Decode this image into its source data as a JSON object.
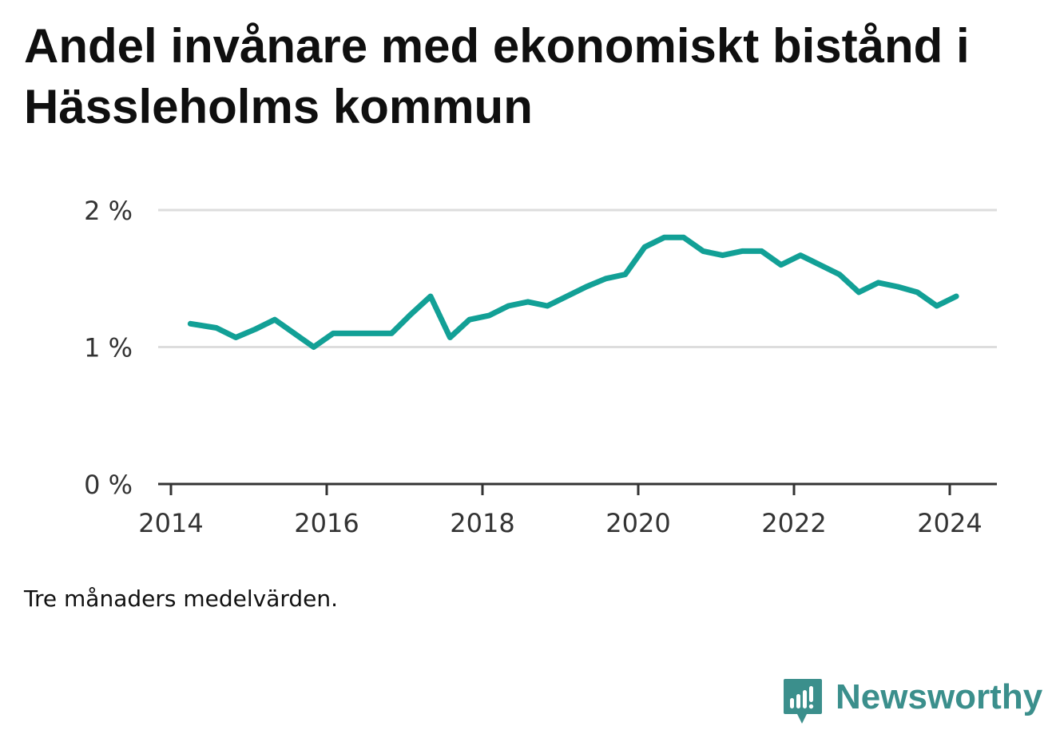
{
  "title": "Andel invånare med ekonomiskt bistånd i Hässleholms kommun",
  "note": "Tre månaders medelvärden.",
  "brand": {
    "name": "Newsworthy",
    "color": "#3b8f8c",
    "icon": "newsworthy-logo-icon"
  },
  "colors": {
    "line": "#12a096",
    "grid": "#dddddd",
    "axis": "#333333"
  },
  "chart_data": {
    "type": "line",
    "title": "Andel invånare med ekonomiskt bistånd i Hässleholms kommun",
    "xlabel": "",
    "ylabel": "",
    "xlim": [
      2014,
      2024.3
    ],
    "ylim": [
      0,
      2
    ],
    "x_ticks": [
      2014,
      2016,
      2018,
      2020,
      2022,
      2024
    ],
    "x_tick_labels": [
      "2014",
      "2016",
      "2018",
      "2020",
      "2022",
      "2024"
    ],
    "y_ticks": [
      0,
      1,
      2
    ],
    "y_tick_labels": [
      "0 %",
      "1 %",
      "2 %"
    ],
    "grid": "horizontal",
    "series": [
      {
        "x": [
          "2014-04",
          "2014-08",
          "2014-11",
          "2015-02",
          "2015-05",
          "2015-08",
          "2015-11",
          "2016-02",
          "2016-05",
          "2016-08",
          "2016-11",
          "2017-02",
          "2017-05",
          "2017-08",
          "2017-11",
          "2018-02",
          "2018-05",
          "2018-08",
          "2018-11",
          "2019-02",
          "2019-05",
          "2019-08",
          "2019-11",
          "2020-02",
          "2020-05",
          "2020-08",
          "2020-11",
          "2021-02",
          "2021-05",
          "2021-08",
          "2021-11",
          "2022-02",
          "2022-05",
          "2022-08",
          "2022-11",
          "2023-02",
          "2023-05",
          "2023-08",
          "2023-11",
          "2024-02"
        ],
        "values": [
          1.17,
          1.14,
          1.07,
          1.13,
          1.2,
          1.1,
          1.0,
          1.1,
          1.1,
          1.1,
          1.1,
          1.24,
          1.37,
          1.07,
          1.2,
          1.23,
          1.3,
          1.33,
          1.3,
          1.37,
          1.44,
          1.5,
          1.53,
          1.73,
          1.8,
          1.8,
          1.7,
          1.67,
          1.7,
          1.7,
          1.6,
          1.67,
          1.6,
          1.53,
          1.4,
          1.47,
          1.44,
          1.4,
          1.3,
          1.37
        ]
      }
    ]
  }
}
